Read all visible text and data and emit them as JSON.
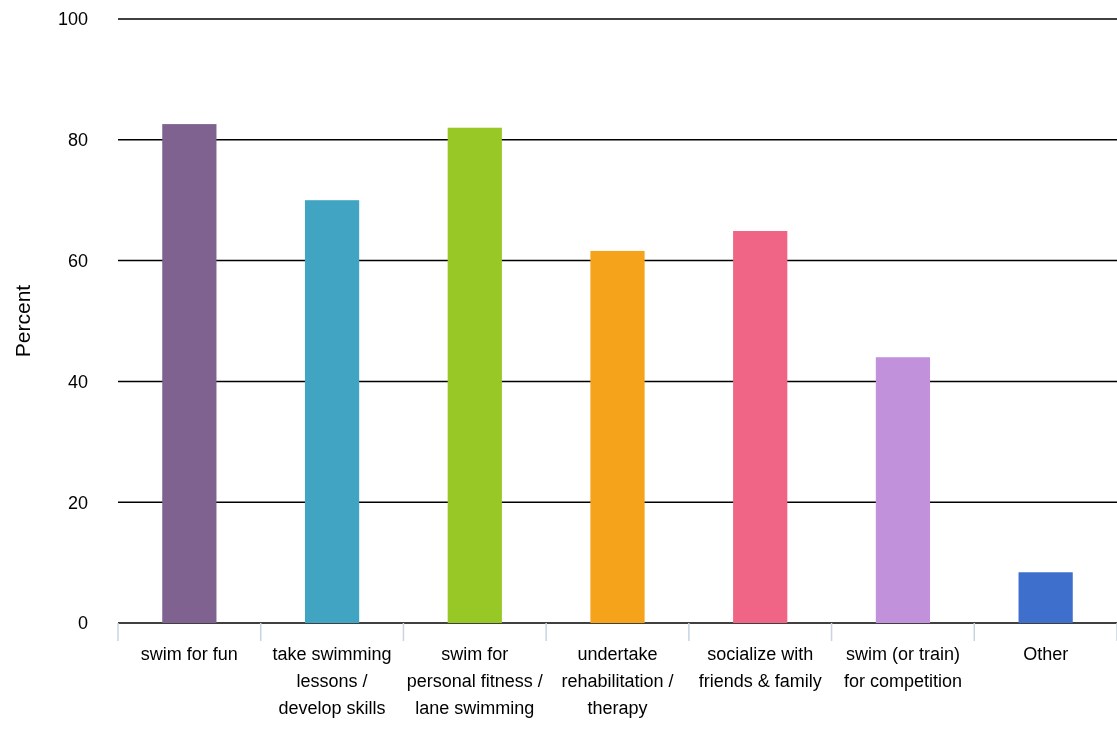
{
  "chart_data": {
    "type": "bar",
    "ylabel": "Percent",
    "categories": [
      "swim for fun",
      "take swimming lessons / develop skills",
      "swim for personal fitness / lane swimming",
      "undertake rehabilitation / therapy",
      "socialize with friends & family",
      "swim (or train) for competition",
      "Other"
    ],
    "values": [
      82.6,
      70.0,
      82.0,
      61.6,
      64.9,
      44.0,
      8.4
    ],
    "colors": [
      "#7f6290",
      "#40a4c2",
      "#97c825",
      "#f5a31a",
      "#f06585",
      "#c192db",
      "#3f6fcc"
    ],
    "ylim": [
      0,
      100
    ],
    "yticks": [
      0,
      20,
      40,
      60,
      80,
      100
    ],
    "grid": "y"
  }
}
